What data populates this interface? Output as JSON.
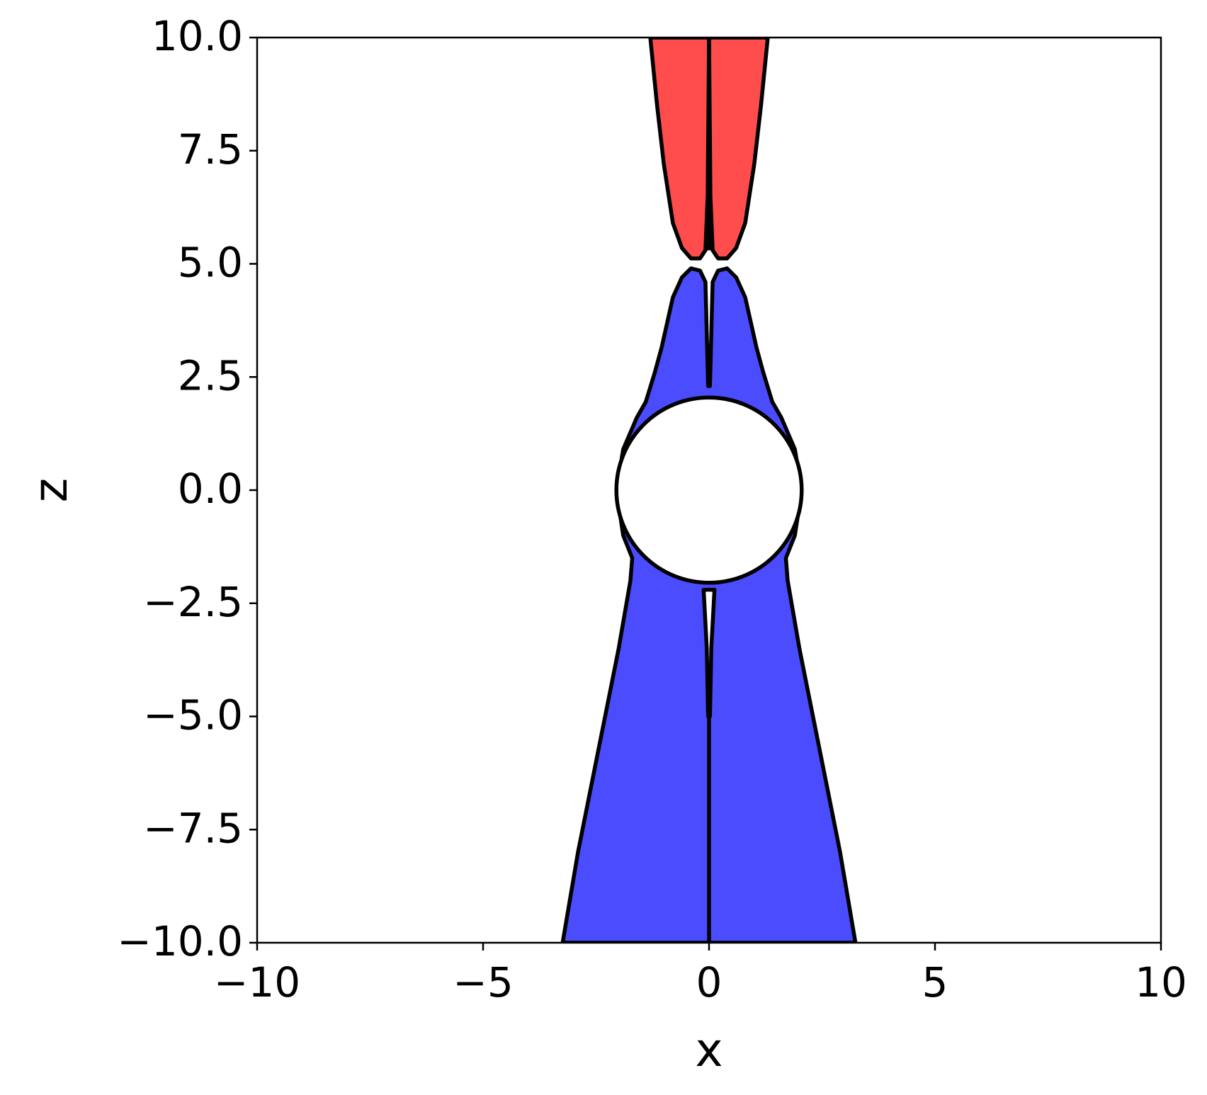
{
  "chart_data": {
    "type": "region",
    "xlabel": "x",
    "ylabel": "z",
    "xlim": [
      -10,
      10
    ],
    "ylim": [
      -10,
      10
    ],
    "xticks": [
      {
        "value": -10,
        "label": "−10"
      },
      {
        "value": -5,
        "label": "−5"
      },
      0,
      5,
      10
    ],
    "yticks": [
      {
        "value": -10,
        "label": "−10.0"
      },
      {
        "value": -7.5,
        "label": "−7.5"
      },
      {
        "value": -5,
        "label": "−5.0"
      },
      {
        "value": -2.5,
        "label": "−2.5"
      },
      {
        "value": 0,
        "label": "0.0"
      },
      2.5,
      {
        "value": 5,
        "label": "5.0"
      },
      7.5,
      {
        "value": 10,
        "label": "10.0"
      }
    ],
    "series": [
      {
        "color": "#ff4c4c",
        "x": [
          -1.3,
          -1.15,
          -1.0,
          -0.8,
          -0.6,
          -0.4,
          -0.2,
          -0.08,
          -0.03,
          0,
          0.03,
          0.08,
          0.2,
          0.4,
          0.6,
          0.8,
          1.0,
          1.15,
          1.3
        ],
        "y": [
          10,
          8.5,
          7.2,
          5.9,
          5.35,
          5.12,
          5.12,
          5.3,
          6.5,
          10,
          6.5,
          5.3,
          5.12,
          5.12,
          5.35,
          5.9,
          7.2,
          8.5,
          10
        ]
      },
      {
        "color": "#4c4cff",
        "x": [
          -3.24,
          -2.9,
          -2.6,
          -2.3,
          -2.0,
          -1.74,
          -1.7,
          -1.9,
          -2.05,
          -1.9,
          -1.6,
          -1.4,
          -1.2,
          -1.05,
          -0.8,
          -0.6,
          -0.4,
          -0.2,
          -0.08,
          -0.02,
          0.02,
          0.08,
          0.2,
          0.4,
          0.6,
          0.8,
          1.05,
          1.2,
          1.4,
          1.6,
          1.9,
          2.05,
          1.9,
          1.7,
          1.74,
          2.0,
          2.3,
          2.6,
          2.9,
          3.24
        ],
        "y": [
          -10,
          -8,
          -6.5,
          -5,
          -3.5,
          -2,
          -1.5,
          -1.0,
          0,
          0.9,
          1.6,
          1.95,
          2.6,
          3.15,
          4.26,
          4.7,
          4.9,
          4.85,
          4.6,
          2.3,
          2.3,
          4.6,
          4.85,
          4.9,
          4.7,
          4.26,
          3.15,
          2.6,
          1.95,
          1.6,
          0.9,
          0,
          -1.0,
          -1.5,
          -2,
          -3.5,
          -5,
          -6.5,
          -8,
          -10
        ]
      },
      {
        "color": "#ffffff",
        "x": [
          -0.12,
          -0.05,
          -0.02,
          0.02,
          0.05,
          0.12
        ],
        "y": [
          -2.2,
          -3.5,
          -5,
          -5,
          -3.5,
          -2.2
        ]
      }
    ],
    "lines": [
      {
        "color": "#000000",
        "x": [
          0,
          0
        ],
        "y": [
          5.3,
          10
        ]
      },
      {
        "color": "#000000",
        "x": [
          0,
          0
        ],
        "y": [
          -5,
          -10
        ]
      }
    ],
    "circle": {
      "color": "#ffffff",
      "center": [
        0,
        0
      ],
      "radius": 2.05
    }
  }
}
